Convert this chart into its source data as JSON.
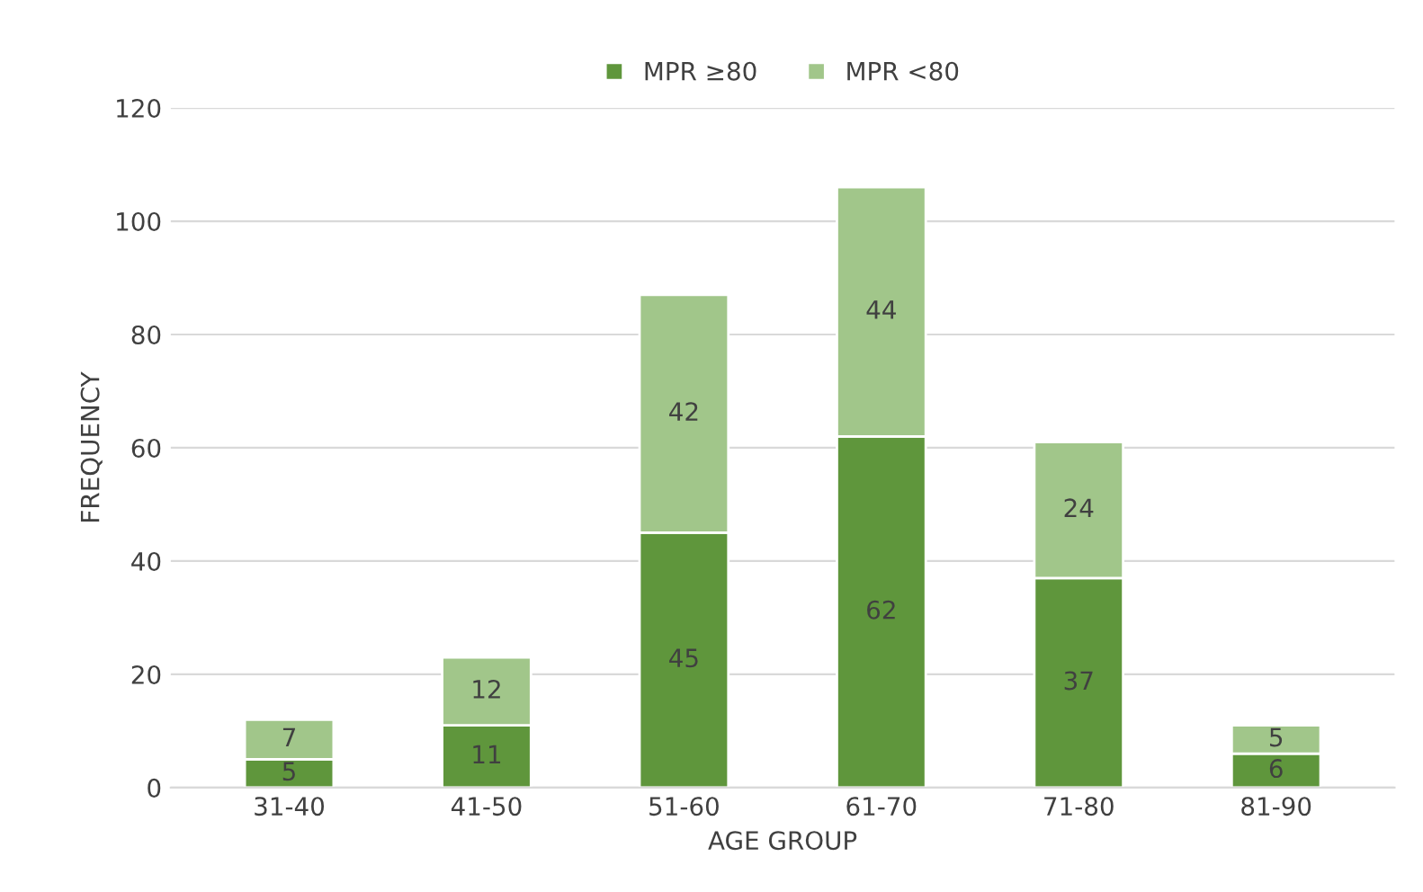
{
  "chart_data": {
    "type": "bar",
    "stacked": true,
    "xlabel": "AGE GROUP",
    "ylabel": "FREQUENCY",
    "categories": [
      "31-40",
      "41-50",
      "51-60",
      "61-70",
      "71-80",
      "81-90"
    ],
    "series": [
      {
        "name": "MPR ≥80",
        "color": "#5f963c",
        "values": [
          5,
          11,
          45,
          62,
          37,
          6
        ]
      },
      {
        "name": "MPR <80",
        "color": "#a1c68a",
        "values": [
          7,
          12,
          42,
          44,
          24,
          5
        ]
      }
    ],
    "ylim": [
      0,
      120
    ],
    "yticks": [
      0,
      20,
      40,
      60,
      80,
      100,
      120
    ],
    "grid": "y",
    "legend": "top",
    "data_labels": true
  }
}
